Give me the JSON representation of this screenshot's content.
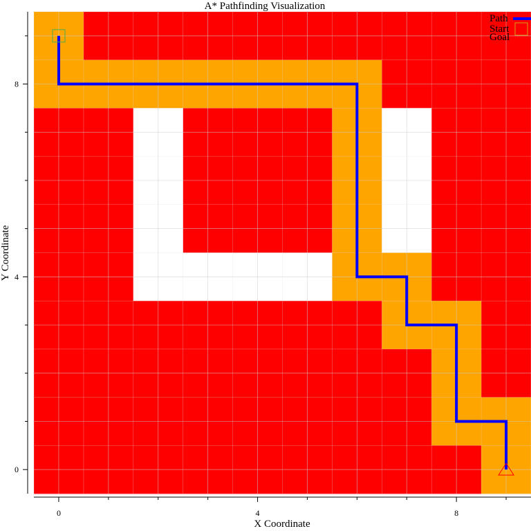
{
  "chart_data": {
    "type": "heatmap",
    "title": "A* Pathfinding Visualization",
    "xlabel": "X Coordinate",
    "ylabel": "Y Coordinate",
    "xlim": [
      -0.5,
      9.5
    ],
    "ylim": [
      -0.5,
      9.5
    ],
    "xticks": [
      0,
      4,
      8
    ],
    "yticks": [
      0,
      4,
      8
    ],
    "minor_tick_step": 1,
    "grid": true,
    "legend_position": "top-right",
    "colors": {
      "obstacle": "#ff0000",
      "explored": "#ffa500",
      "free": "#ffffff",
      "path": "#0000ff",
      "start_marker": "#4caf50",
      "goal_marker": "#ff0000"
    },
    "grid_rows_top_to_bottom": [
      [
        1,
        0,
        0,
        0,
        0,
        0,
        0,
        0,
        0,
        0
      ],
      [
        1,
        1,
        1,
        1,
        1,
        1,
        1,
        0,
        0,
        0
      ],
      [
        0,
        0,
        3,
        0,
        0,
        0,
        1,
        2,
        0,
        0
      ],
      [
        0,
        0,
        2,
        0,
        0,
        0,
        1,
        2,
        0,
        0
      ],
      [
        0,
        0,
        2,
        0,
        0,
        0,
        1,
        2,
        0,
        0
      ],
      [
        0,
        0,
        2,
        2,
        2,
        2,
        1,
        1,
        0,
        0
      ],
      [
        0,
        0,
        0,
        0,
        0,
        0,
        0,
        1,
        1,
        0
      ],
      [
        0,
        0,
        0,
        0,
        0,
        0,
        0,
        0,
        1,
        0
      ],
      [
        0,
        0,
        0,
        0,
        0,
        0,
        0,
        0,
        1,
        1
      ],
      [
        0,
        0,
        0,
        0,
        0,
        0,
        0,
        0,
        0,
        1
      ]
    ],
    "cell_legend": {
      "0": "obstacle",
      "1": "explored",
      "2": "free",
      "3": "free"
    },
    "path": [
      [
        0,
        9
      ],
      [
        0,
        8
      ],
      [
        6,
        8
      ],
      [
        6,
        4
      ],
      [
        7,
        4
      ],
      [
        7,
        3
      ],
      [
        8,
        3
      ],
      [
        8,
        1
      ],
      [
        9,
        1
      ],
      [
        9,
        0
      ]
    ],
    "start": [
      0,
      9
    ],
    "goal": [
      9,
      0
    ],
    "legend": [
      {
        "key": "path",
        "label": "Path"
      },
      {
        "key": "start",
        "label": "Start"
      },
      {
        "key": "goal",
        "label": "Goal"
      }
    ]
  }
}
